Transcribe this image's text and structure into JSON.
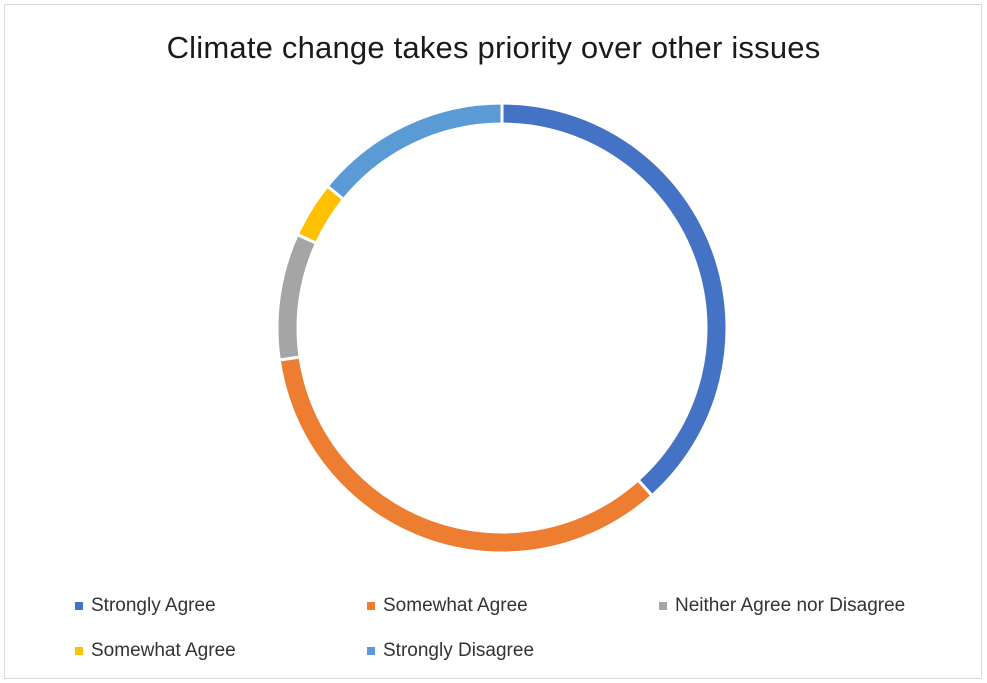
{
  "chart_data": {
    "type": "pie",
    "title": "Climate change takes priority over other issues",
    "categories": [
      "Strongly Agree",
      "Somewhat Agree",
      "Neither Agree nor Disagree",
      "Somewhat Agree",
      "Strongly Disagree"
    ],
    "values": [
      38,
      34,
      9,
      4,
      14
    ],
    "colors": [
      "#4472c4",
      "#ed7d31",
      "#a5a5a5",
      "#ffc000",
      "#5b9bd5"
    ],
    "style": "donut",
    "legend_position": "bottom"
  }
}
